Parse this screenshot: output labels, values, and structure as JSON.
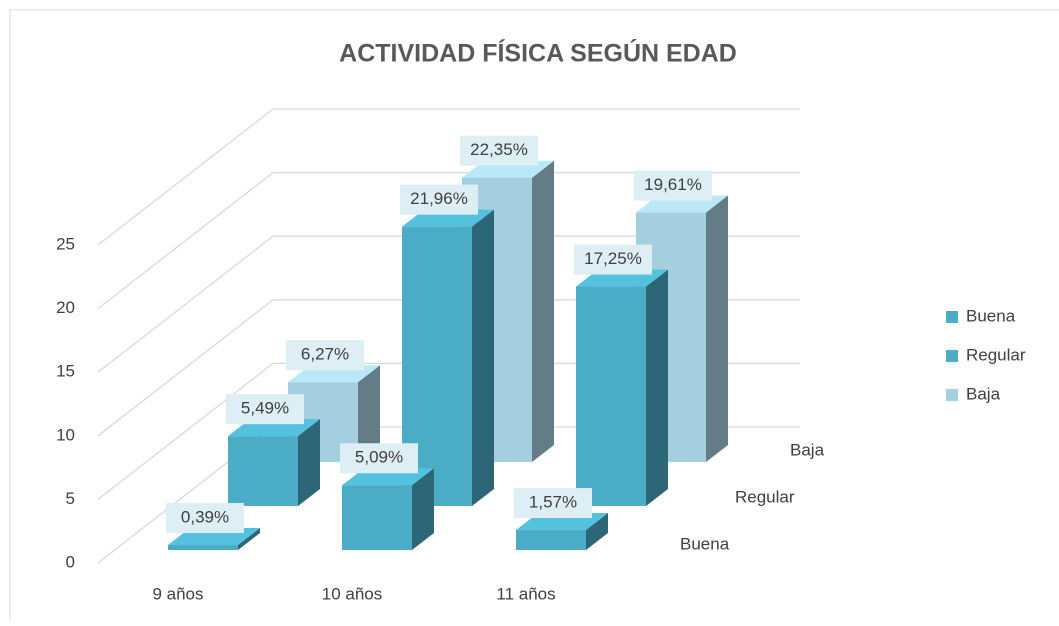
{
  "chart_data": {
    "type": "bar3d",
    "title": "ACTIVIDAD FÍSICA SEGÚN EDAD",
    "categories": [
      "9 años",
      "10 años",
      "11 años"
    ],
    "series": [
      {
        "name": "Buena",
        "color": "#4bacc6",
        "values": [
          0.39,
          5.09,
          1.57
        ],
        "value_labels": [
          "0,39%",
          "5,09%",
          "1,57%"
        ]
      },
      {
        "name": "Regular",
        "color": "#4bacc6",
        "values": [
          5.49,
          21.96,
          17.25
        ],
        "value_labels": [
          "5,49%",
          "21,96%",
          "17,25%"
        ]
      },
      {
        "name": "Baja",
        "color": "#a5cfde",
        "values": [
          6.27,
          22.35,
          19.61
        ],
        "value_labels": [
          "6,27%",
          "22,35%",
          "19,61%"
        ]
      }
    ],
    "ylim": [
      0,
      25
    ],
    "yticks": [
      0,
      5,
      10,
      15,
      20,
      25
    ],
    "grid": true,
    "legend": "right"
  }
}
